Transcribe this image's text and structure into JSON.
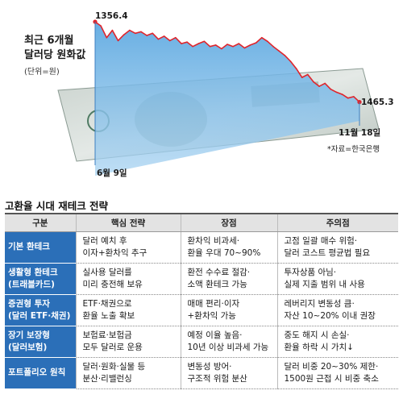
{
  "chart_data": {
    "type": "area",
    "title": "최근 6개월\n달러당 원화값",
    "unit": "(단위=원)",
    "start_label": "6월 9일",
    "end_label": "11월 18일",
    "start_value_label": "1356.4",
    "end_value_label": "1465.3",
    "source": "자료=한국은행",
    "y_inverted": true,
    "ylim": [
      1340,
      1480
    ],
    "x": [
      "6/9",
      "6/12",
      "6/16",
      "6/19",
      "6/23",
      "6/26",
      "6/30",
      "7/3",
      "7/7",
      "7/10",
      "7/14",
      "7/17",
      "7/21",
      "7/24",
      "7/28",
      "7/31",
      "8/4",
      "8/7",
      "8/11",
      "8/14",
      "8/18",
      "8/21",
      "8/25",
      "8/28",
      "9/1",
      "9/4",
      "9/8",
      "9/11",
      "9/15",
      "9/18",
      "9/22",
      "9/25",
      "9/29",
      "10/2",
      "10/6",
      "10/9",
      "10/13",
      "10/16",
      "10/20",
      "10/23",
      "10/27",
      "10/30",
      "11/3",
      "11/6",
      "11/10",
      "11/13",
      "11/18"
    ],
    "values": [
      1356.4,
      1362,
      1378,
      1368,
      1382,
      1374,
      1368,
      1372,
      1370,
      1375,
      1372,
      1380,
      1376,
      1382,
      1378,
      1386,
      1384,
      1390,
      1386,
      1383,
      1390,
      1388,
      1393,
      1387,
      1390,
      1386,
      1392,
      1388,
      1385,
      1378,
      1383,
      1390,
      1396,
      1402,
      1410,
      1420,
      1432,
      1428,
      1438,
      1444,
      1440,
      1448,
      1452,
      1455,
      1460,
      1458,
      1465.3
    ]
  },
  "strategy": {
    "title": "고환율 시대 재테크 전략",
    "headers": [
      "구분",
      "핵심 전략",
      "장점",
      "주의점"
    ],
    "rows": [
      {
        "category": "기본 환테크",
        "strategy": [
          "달러 예치 후",
          "이자+환차익 추구"
        ],
        "pros": [
          "환차익 비과세·",
          "환율 우대 70~90%"
        ],
        "cautions": [
          "고점 일괄 매수 위험·",
          "달러 코스트 평균법 필요"
        ]
      },
      {
        "category": "생활형 환테크\n(트래블카드)",
        "strategy": [
          "실사용 달러를",
          "미리 충전해 보유"
        ],
        "pros": [
          "환전 수수료 절감·",
          "소액 환테크 가능"
        ],
        "cautions": [
          "투자상품 아님·",
          "실제 지출 범위 내 사용"
        ]
      },
      {
        "category": "증권형 투자\n(달러 ETF·채권)",
        "strategy": [
          "ETF·채권으로",
          "환율 노출 확보"
        ],
        "pros": [
          "매매 편리·이자",
          "+환차익 가능"
        ],
        "cautions": [
          "레버리지 변동성 큼·",
          "자산 10~20% 이내 권장"
        ]
      },
      {
        "category": "장기 보장형\n(달러보험)",
        "strategy": [
          "보험료·보험금",
          "모두 달러로 운용"
        ],
        "pros": [
          "예정 이율 높음·",
          "10년 이상 비과세 가능"
        ],
        "cautions": [
          "중도 해지 시 손실·",
          "환율 하락 시 가치↓"
        ]
      },
      {
        "category": "포트폴리오 원칙",
        "strategy": [
          "달러·원화·실물 등",
          "분산·리밸런싱"
        ],
        "pros": [
          "변동성 방어·",
          "구조적 위험 분산"
        ],
        "cautions": [
          "달러 비중 20~30% 제한·",
          "1500원 근접 시 비중 축소"
        ]
      }
    ]
  }
}
